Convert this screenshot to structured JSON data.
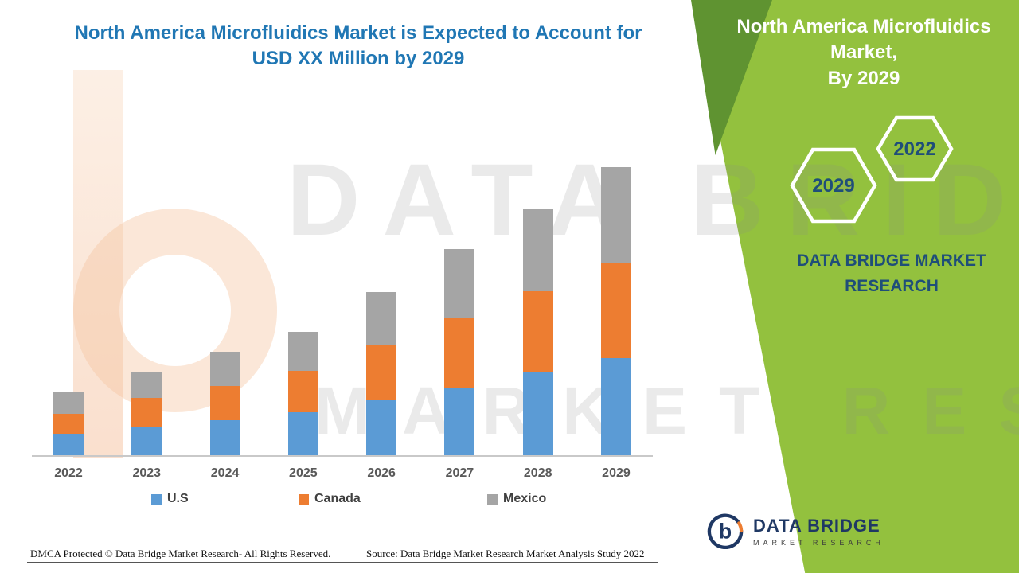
{
  "title": {
    "line1": "North America Microfluidics Market is Expected to Account for",
    "line2": "USD XX Million by 2029"
  },
  "chart_data": {
    "type": "bar",
    "stacked": true,
    "title": "North America Microfluidics Market is Expected to Account for USD XX Million by 2029",
    "categories": [
      "2022",
      "2023",
      "2024",
      "2025",
      "2026",
      "2027",
      "2028",
      "2029"
    ],
    "series": [
      {
        "name": "U.S",
        "color": "#5B9BD5",
        "values": [
          27,
          35,
          44,
          54,
          69,
          85,
          105,
          122
        ]
      },
      {
        "name": "Canada",
        "color": "#ED7D31",
        "values": [
          25,
          37,
          43,
          52,
          69,
          87,
          101,
          120
        ]
      },
      {
        "name": "Mexico",
        "color": "#A5A5A5",
        "values": [
          28,
          33,
          43,
          49,
          67,
          87,
          103,
          120
        ]
      }
    ],
    "xlabel": "",
    "ylabel": "",
    "value_axis_visible": false,
    "values_note": "No numeric value axis shown; values are relative units estimated from bar heights (market sized as 'USD XX Million')",
    "legend_position": "bottom",
    "grid": false
  },
  "side_panel": {
    "headline_line1": "North America Microfluidics Market,",
    "headline_line2": "By 2029",
    "hexagon_left": "2029",
    "hexagon_right": "2022",
    "brand_line1": "DATA BRIDGE MARKET",
    "brand_line2": "RESEARCH"
  },
  "watermark": {
    "line1": "DATA BRIDGE",
    "line2": "MARKET RESEARCH"
  },
  "logo": {
    "title": "DATA BRIDGE",
    "subtitle": "MARKET RESEARCH"
  },
  "footer": {
    "dmca": "DMCA Protected © Data Bridge Market Research- All Rights Reserved.",
    "source": "Source: Data Bridge Market Research Market Analysis Study 2022"
  },
  "colors": {
    "green_panel": "#93C13E",
    "green_dark": "#5F9331",
    "title_blue": "#2077B4",
    "navy": "#1F4E79"
  }
}
